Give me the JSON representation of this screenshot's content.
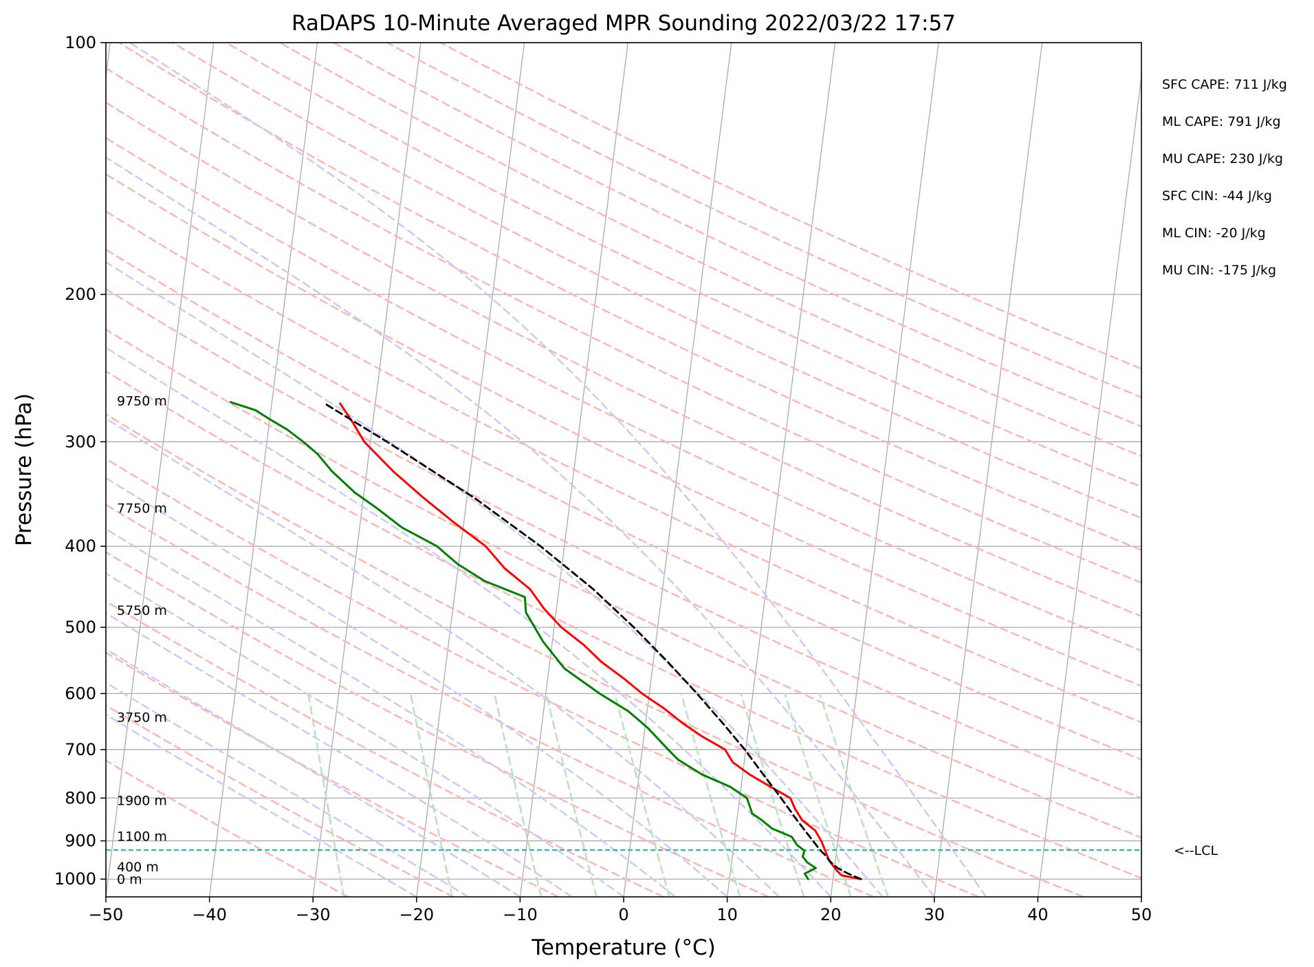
{
  "chart_data": {
    "type": "line",
    "title": "RaDAPS 10-Minute Averaged MPR Sounding 2022/03/22 17:57",
    "xlabel": "Temperature (°C)",
    "ylabel": "Pressure (hPa)",
    "xlim": [
      -50,
      50
    ],
    "ylim": [
      1050,
      100
    ],
    "y_scale": "log",
    "x_ticks": [
      -50,
      -40,
      -30,
      -20,
      -10,
      0,
      10,
      20,
      30,
      40,
      50
    ],
    "x_tick_labels": [
      "−50",
      "−40",
      "−30",
      "−20",
      "−10",
      "0",
      "10",
      "20",
      "30",
      "40",
      "50"
    ],
    "y_ticks": [
      100,
      200,
      300,
      400,
      500,
      600,
      700,
      800,
      900,
      1000
    ],
    "y_tick_labels": [
      "100",
      "200",
      "300",
      "400",
      "500",
      "600",
      "700",
      "800",
      "900",
      "1000"
    ],
    "grid": true,
    "series": [
      {
        "role": "temperature",
        "color": "#ff0000",
        "points": [
          [
            1000,
            22.7
          ],
          [
            990,
            20.8
          ],
          [
            975,
            20.2
          ],
          [
            950,
            19.4
          ],
          [
            925,
            18.9
          ],
          [
            900,
            18.4
          ],
          [
            875,
            17.7
          ],
          [
            850,
            16.3
          ],
          [
            825,
            15.5
          ],
          [
            800,
            14.9
          ],
          [
            775,
            12.8
          ],
          [
            750,
            10.7
          ],
          [
            725,
            8.9
          ],
          [
            700,
            8.0
          ],
          [
            675,
            5.6
          ],
          [
            650,
            3.5
          ],
          [
            625,
            1.6
          ],
          [
            600,
            -0.7
          ],
          [
            575,
            -2.7
          ],
          [
            550,
            -5.0
          ],
          [
            525,
            -6.9
          ],
          [
            500,
            -9.3
          ],
          [
            475,
            -11.2
          ],
          [
            450,
            -12.8
          ],
          [
            425,
            -15.5
          ],
          [
            400,
            -17.6
          ],
          [
            375,
            -20.9
          ],
          [
            350,
            -24.2
          ],
          [
            325,
            -27.5
          ],
          [
            300,
            -30.6
          ],
          [
            285,
            -31.9
          ],
          [
            270,
            -33.4
          ]
        ]
      },
      {
        "role": "dewpoint",
        "color": "#008000",
        "points": [
          [
            1000,
            17.6
          ],
          [
            985,
            17.2
          ],
          [
            970,
            18.2
          ],
          [
            955,
            17.3
          ],
          [
            940,
            16.8
          ],
          [
            925,
            16.9
          ],
          [
            910,
            16.1
          ],
          [
            890,
            15.5
          ],
          [
            870,
            13.5
          ],
          [
            850,
            12.4
          ],
          [
            835,
            11.4
          ],
          [
            800,
            10.7
          ],
          [
            775,
            8.9
          ],
          [
            750,
            6.1
          ],
          [
            720,
            3.6
          ],
          [
            700,
            2.5
          ],
          [
            660,
            0.3
          ],
          [
            630,
            -1.8
          ],
          [
            600,
            -4.8
          ],
          [
            560,
            -8.5
          ],
          [
            520,
            -10.9
          ],
          [
            480,
            -12.9
          ],
          [
            460,
            -13.2
          ],
          [
            440,
            -17.3
          ],
          [
            420,
            -20.1
          ],
          [
            400,
            -22.3
          ],
          [
            380,
            -25.9
          ],
          [
            360,
            -28.6
          ],
          [
            345,
            -30.9
          ],
          [
            325,
            -33.4
          ],
          [
            310,
            -35.0
          ],
          [
            300,
            -36.5
          ],
          [
            290,
            -38.2
          ],
          [
            282,
            -40.0
          ],
          [
            275,
            -41.5
          ],
          [
            269,
            -44.0
          ]
        ]
      },
      {
        "role": "parcel",
        "color": "#000000",
        "dashed": true,
        "points": [
          [
            1000,
            22.7
          ],
          [
            985,
            21.4
          ],
          [
            970,
            20.3
          ],
          [
            955,
            19.6
          ],
          [
            935,
            18.9
          ],
          [
            923,
            18.4
          ],
          [
            900,
            17.6
          ],
          [
            850,
            15.8
          ],
          [
            800,
            14.0
          ],
          [
            750,
            12.0
          ],
          [
            700,
            9.9
          ],
          [
            650,
            7.4
          ],
          [
            600,
            4.6
          ],
          [
            550,
            1.4
          ],
          [
            500,
            -2.3
          ],
          [
            450,
            -6.7
          ],
          [
            400,
            -12.3
          ],
          [
            350,
            -19.3
          ],
          [
            300,
            -28.4
          ],
          [
            270,
            -34.9
          ]
        ]
      }
    ],
    "lcl_pressure": 923,
    "lcl_label": "<--LCL",
    "altitude_labels": [
      {
        "pressure": 1000,
        "label": "0 m"
      },
      {
        "pressure": 966,
        "label": "400 m"
      },
      {
        "pressure": 888,
        "label": "1100 m"
      },
      {
        "pressure": 805,
        "label": "1900 m"
      },
      {
        "pressure": 640,
        "label": "3750 m"
      },
      {
        "pressure": 477,
        "label": "5750 m"
      },
      {
        "pressure": 360,
        "label": "7750 m"
      },
      {
        "pressure": 268,
        "label": "9750 m"
      }
    ],
    "stats": [
      "SFC CAPE: 711 J/kg",
      "ML CAPE: 791 J/kg",
      "MU CAPE: 230 J/kg",
      "SFC CIN: -44 J/kg",
      "ML CIN: -20 J/kg",
      "MU CIN: -175 J/kg"
    ],
    "background_lines": {
      "isotherm_color": "#aaaaaa",
      "dry_adiabat_color": "#ffb3b3",
      "moist_adiabat_color": "#c8c8ff",
      "mixing_ratio_color": "#b9e0b9",
      "lcl_color": "#20b2aa"
    }
  }
}
